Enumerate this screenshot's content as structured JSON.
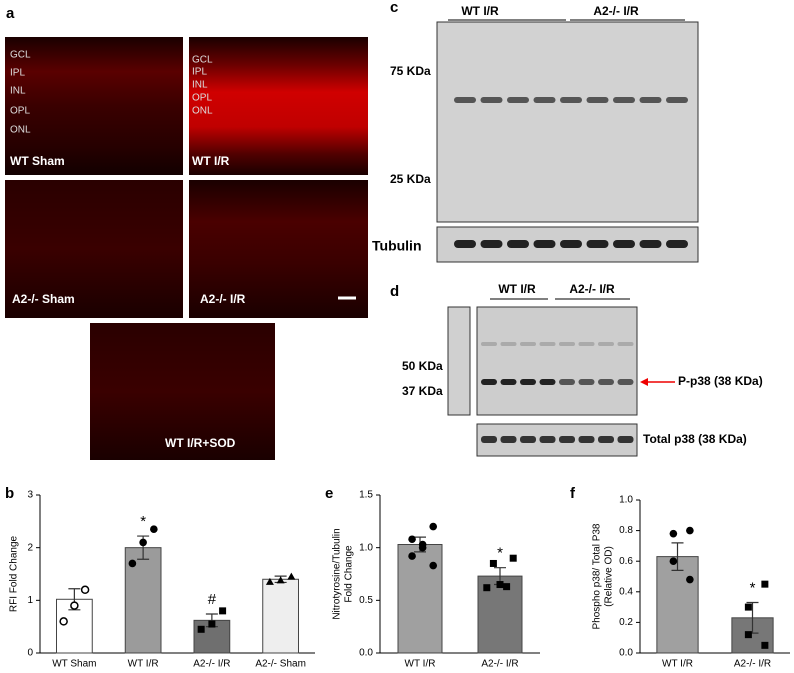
{
  "panels": {
    "a": {
      "letter": "a",
      "images": [
        {
          "label": "WT Sham",
          "layers": [
            "GCL",
            "IPL",
            "INL",
            "OPL",
            "ONL"
          ]
        },
        {
          "label": "WT I/R",
          "layers": [
            "GCL",
            "IPL",
            "INL",
            "OPL",
            "ONL"
          ]
        },
        {
          "label": "A2-/- Sham"
        },
        {
          "label": "A2-/- I/R"
        },
        {
          "label": "WT I/R+SOD"
        }
      ]
    },
    "c": {
      "letter": "c",
      "groups": [
        "WT I/R",
        "A2-/- I/R"
      ],
      "markers": [
        "75 KDa",
        "25 KDa"
      ],
      "loading": "Tubulin"
    },
    "d": {
      "letter": "d",
      "groups": [
        "WT I/R",
        "A2-/- I/R"
      ],
      "markers": [
        "50 KDa",
        "37 KDa"
      ],
      "target": "P-p38 (38 KDa)",
      "loading": "Total p38 (38 KDa)"
    }
  },
  "chart_data": [
    {
      "type": "bar",
      "panel": "b",
      "y_label": [
        "RFI Fold Change"
      ],
      "categories": [
        "WT Sham",
        "WT I/R",
        "A2-/- I/R",
        "A2-/- Sham"
      ],
      "values": [
        1.02,
        2.0,
        0.62,
        1.4
      ],
      "errors": [
        0.2,
        0.22,
        0.12,
        0.06
      ],
      "colors": [
        "#ffffff",
        "#9b9b9b",
        "#6f6f6f",
        "#eeeeee"
      ],
      "markers": [
        "circle-open",
        "circle",
        "square",
        "triangle"
      ],
      "points": [
        [
          1.2,
          0.9,
          0.6
        ],
        [
          2.35,
          2.1,
          1.7
        ],
        [
          0.8,
          0.55,
          0.45
        ],
        [
          1.45,
          1.38,
          1.35
        ]
      ],
      "annotations": [
        null,
        "*",
        "#",
        null
      ],
      "ylim": [
        0,
        3
      ],
      "yticks": [
        0,
        1,
        2,
        3
      ]
    },
    {
      "type": "bar",
      "panel": "e",
      "y_label": [
        "Nitrotyrosine/Tubulin",
        "Fold Change"
      ],
      "categories": [
        "WT I/R",
        "A2-/- I/R"
      ],
      "values": [
        1.03,
        0.73
      ],
      "errors": [
        0.07,
        0.08
      ],
      "colors": [
        "#a0a0a0",
        "#777777"
      ],
      "markers": [
        "circle",
        "square"
      ],
      "points": [
        [
          1.2,
          1.08,
          1.03,
          1.0,
          0.92,
          0.83
        ],
        [
          0.9,
          0.85,
          0.65,
          0.63,
          0.62
        ]
      ],
      "annotations": [
        null,
        "*"
      ],
      "ylim": [
        0,
        1.5
      ],
      "yticks": [
        {
          "value": 0,
          "label": "0.0"
        },
        0.5,
        {
          "value": 1,
          "label": "1.0"
        },
        1.5
      ]
    },
    {
      "type": "bar",
      "panel": "f",
      "y_label": [
        "Phospho p38/ Total P38",
        "(Relative OD)"
      ],
      "categories": [
        "WT I/R",
        "A2-/- I/R"
      ],
      "values": [
        0.63,
        0.23
      ],
      "errors": [
        0.09,
        0.1
      ],
      "colors": [
        "#a0a0a0",
        "#777777"
      ],
      "markers": [
        "circle",
        "square"
      ],
      "points": [
        [
          0.8,
          0.78,
          0.6,
          0.48
        ],
        [
          0.45,
          0.3,
          0.12,
          0.05
        ]
      ],
      "annotations": [
        null,
        "*"
      ],
      "ylim": [
        0,
        1
      ],
      "yticks": [
        {
          "value": 0,
          "label": "0.0"
        },
        0.2,
        0.4,
        0.6,
        0.8,
        {
          "value": 1,
          "label": "1.0"
        }
      ]
    }
  ]
}
